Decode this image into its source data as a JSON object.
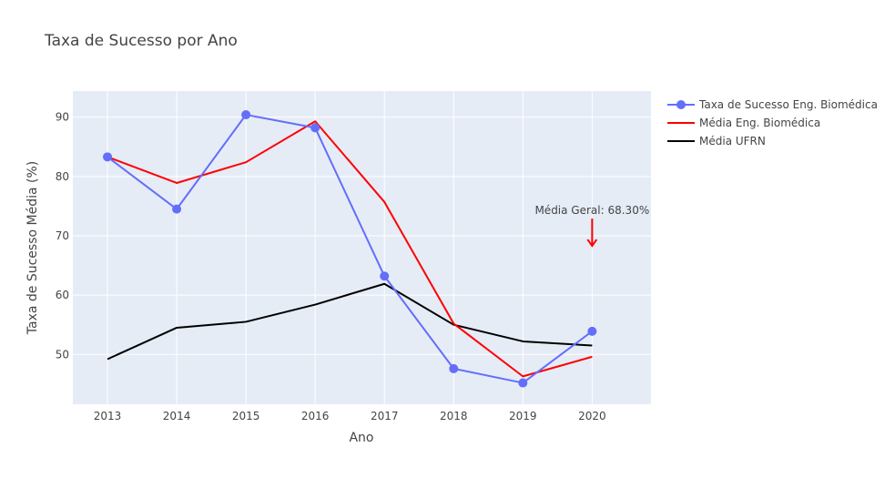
{
  "chart_data": {
    "type": "line",
    "title": "Taxa de Sucesso por Ano",
    "xlabel": "Ano",
    "ylabel": "Taxa de Sucesso Média (%)",
    "x": [
      "2013",
      "2014",
      "2015",
      "2016",
      "2017",
      "2018",
      "2019",
      "2020"
    ],
    "xlim": [
      2012.5,
      2020.85
    ],
    "ylim": [
      41.6,
      94.4
    ],
    "yticks": [
      "50",
      "60",
      "70",
      "80",
      "90"
    ],
    "grid": true,
    "legend_position": "top-right",
    "series": [
      {
        "name": "Taxa de Sucesso Eng. Biomédica",
        "values": [
          83.3,
          74.5,
          90.4,
          88.2,
          63.2,
          47.6,
          45.2,
          53.9
        ],
        "color": "#636efa",
        "markers": true
      },
      {
        "name": "Média Eng. Biomédica",
        "values": [
          83.3,
          78.9,
          82.4,
          89.3,
          75.7,
          55.2,
          46.3,
          49.6
        ],
        "color": "#ff0000",
        "markers": false
      },
      {
        "name": "Média UFRN",
        "values": [
          49.2,
          54.5,
          55.5,
          58.4,
          61.9,
          55.0,
          52.2,
          51.5
        ],
        "color": "#000000",
        "markers": false
      }
    ],
    "annotation": {
      "text": "Média Geral: 68.30%",
      "x": "2020",
      "y": 68.3,
      "arrow_color": "#ff0000"
    }
  }
}
